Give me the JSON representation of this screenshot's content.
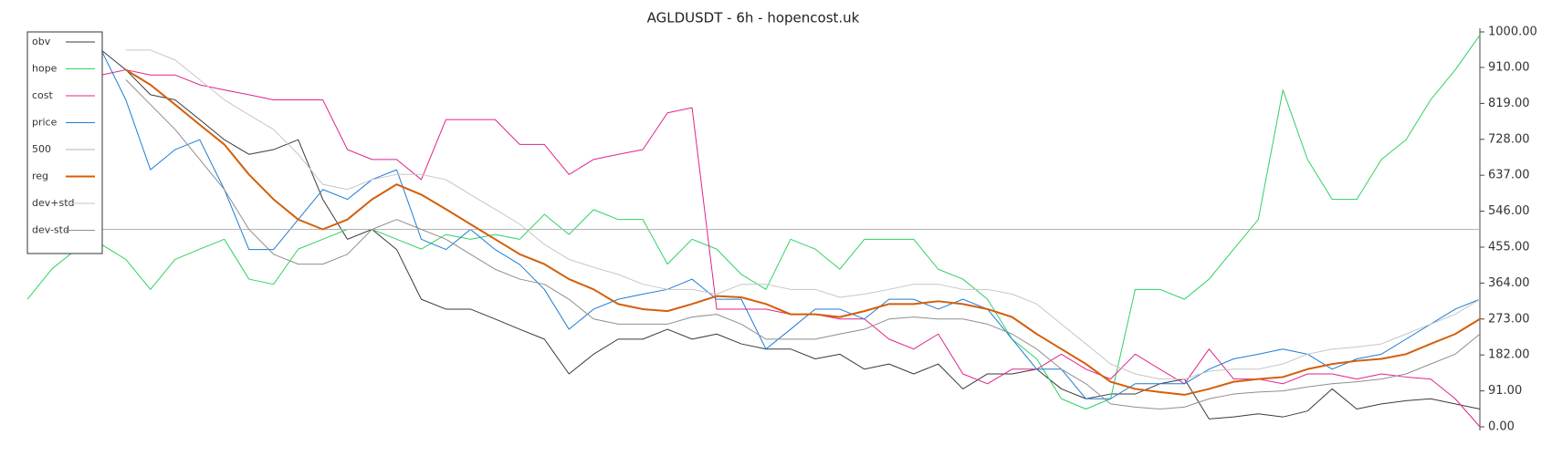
{
  "chart_data": {
    "type": "line",
    "title": "AGLDUSDT - 6h - hopencost.uk",
    "ylim": [
      0,
      1000
    ],
    "yticks": [
      {
        "value": 0,
        "label": "0.00"
      },
      {
        "value": 91,
        "label": "91.00"
      },
      {
        "value": 182,
        "label": "182.00"
      },
      {
        "value": 273,
        "label": "273.00"
      },
      {
        "value": 364,
        "label": "364.00"
      },
      {
        "value": 455,
        "label": "455.00"
      },
      {
        "value": 546,
        "label": "546.00"
      },
      {
        "value": 637,
        "label": "637.00"
      },
      {
        "value": 728,
        "label": "728.00"
      },
      {
        "value": 819,
        "label": "819.00"
      },
      {
        "value": 910,
        "label": "910.00"
      },
      {
        "value": 1000,
        "label": "1000.00"
      }
    ],
    "yaxis_position": "right",
    "grid": false,
    "legend": "upper left",
    "series": [
      {
        "name": "obv",
        "color": "#3a3a3a",
        "values": [
          null,
          null,
          null,
          954,
          904,
          841,
          828,
          778,
          727,
          690,
          702,
          727,
          576,
          475,
          500,
          449,
          323,
          298,
          298,
          273,
          247,
          222,
          134,
          184,
          222,
          222,
          247,
          222,
          235,
          210,
          197,
          197,
          172,
          184,
          146,
          159,
          134,
          159,
          96,
          134,
          134,
          146,
          96,
          71,
          83,
          83,
          109,
          121,
          20,
          25,
          33,
          25,
          40,
          96,
          45,
          58,
          66,
          71,
          58,
          45
        ]
      },
      {
        "name": "hope",
        "color": "#2fd163",
        "values": [
          323,
          400,
          450,
          462,
          424,
          348,
          424,
          450,
          475,
          374,
          361,
          450,
          475,
          500,
          500,
          475,
          450,
          487,
          475,
          487,
          475,
          538,
          487,
          550,
          525,
          525,
          412,
          475,
          450,
          386,
          348,
          475,
          450,
          399,
          475,
          475,
          475,
          399,
          374,
          323,
          222,
          172,
          71,
          45,
          71,
          348,
          348,
          323,
          374,
          450,
          525,
          853,
          677,
          576,
          576,
          677,
          727,
          828,
          904,
          992
        ]
      },
      {
        "name": "cost",
        "color": "#e0248a",
        "values": [
          null,
          null,
          null,
          891,
          904,
          891,
          891,
          866,
          853,
          841,
          828,
          828,
          828,
          702,
          677,
          677,
          626,
          778,
          778,
          778,
          715,
          715,
          639,
          677,
          690,
          702,
          795,
          808,
          298,
          298,
          298,
          285,
          285,
          273,
          273,
          222,
          197,
          235,
          134,
          109,
          146,
          146,
          184,
          146,
          121,
          184,
          146,
          109,
          197,
          121,
          121,
          109,
          134,
          134,
          121,
          134,
          126,
          121,
          71,
          0
        ]
      },
      {
        "name": "price",
        "color": "#1c7cd5",
        "values": [
          null,
          null,
          null,
          954,
          828,
          651,
          702,
          727,
          601,
          449,
          449,
          525,
          601,
          576,
          626,
          651,
          475,
          449,
          500,
          449,
          411,
          348,
          247,
          298,
          323,
          336,
          348,
          374,
          323,
          323,
          197,
          247,
          298,
          298,
          273,
          323,
          323,
          298,
          323,
          298,
          222,
          146,
          146,
          71,
          71,
          109,
          109,
          109,
          146,
          172,
          184,
          197,
          184,
          146,
          172,
          184,
          222,
          260,
          298,
          323
        ]
      },
      {
        "name": "500",
        "color": "#b4b4b4",
        "values": [
          500,
          500,
          500,
          500,
          500,
          500,
          500,
          500,
          500,
          500,
          500,
          500,
          500,
          500,
          500,
          500,
          500,
          500,
          500,
          500,
          500,
          500,
          500,
          500,
          500,
          500,
          500,
          500,
          500,
          500,
          500,
          500,
          500,
          500,
          500,
          500,
          500,
          500,
          500,
          500,
          500,
          500,
          500,
          500,
          500,
          500,
          500,
          500,
          500,
          500,
          500,
          500,
          500,
          500,
          500,
          500,
          500,
          500,
          500,
          500
        ]
      },
      {
        "name": "reg",
        "color": "#d35f0a",
        "width": 2,
        "values": [
          null,
          null,
          null,
          null,
          904,
          866,
          816,
          765,
          715,
          639,
          576,
          525,
          500,
          525,
          576,
          614,
          588,
          551,
          513,
          475,
          437,
          412,
          374,
          348,
          311,
          298,
          293,
          311,
          331,
          328,
          311,
          285,
          285,
          278,
          293,
          311,
          311,
          318,
          311,
          298,
          278,
          235,
          197,
          159,
          114,
          96,
          88,
          81,
          96,
          114,
          121,
          126,
          146,
          159,
          167,
          172,
          184,
          210,
          235,
          273
        ]
      },
      {
        "name": "dev+std",
        "color": "#c6c6c6",
        "values": [
          null,
          null,
          null,
          null,
          954,
          954,
          929,
          879,
          828,
          790,
          753,
          690,
          614,
          601,
          626,
          639,
          639,
          626,
          588,
          551,
          513,
          462,
          424,
          404,
          386,
          361,
          348,
          348,
          336,
          361,
          361,
          348,
          348,
          328,
          336,
          348,
          361,
          361,
          348,
          348,
          336,
          311,
          260,
          210,
          159,
          134,
          121,
          121,
          141,
          146,
          146,
          159,
          184,
          197,
          202,
          210,
          235,
          260,
          285,
          323
        ]
      },
      {
        "name": "dev-std",
        "color": "#8e8e8e",
        "values": [
          null,
          null,
          null,
          null,
          879,
          816,
          753,
          677,
          601,
          500,
          437,
          412,
          412,
          437,
          500,
          525,
          500,
          475,
          437,
          399,
          374,
          361,
          323,
          273,
          260,
          260,
          260,
          278,
          285,
          260,
          222,
          222,
          222,
          235,
          247,
          273,
          278,
          273,
          273,
          260,
          235,
          197,
          146,
          109,
          58,
          50,
          45,
          50,
          71,
          83,
          88,
          91,
          101,
          109,
          114,
          121,
          134,
          159,
          184,
          235
        ]
      }
    ]
  }
}
